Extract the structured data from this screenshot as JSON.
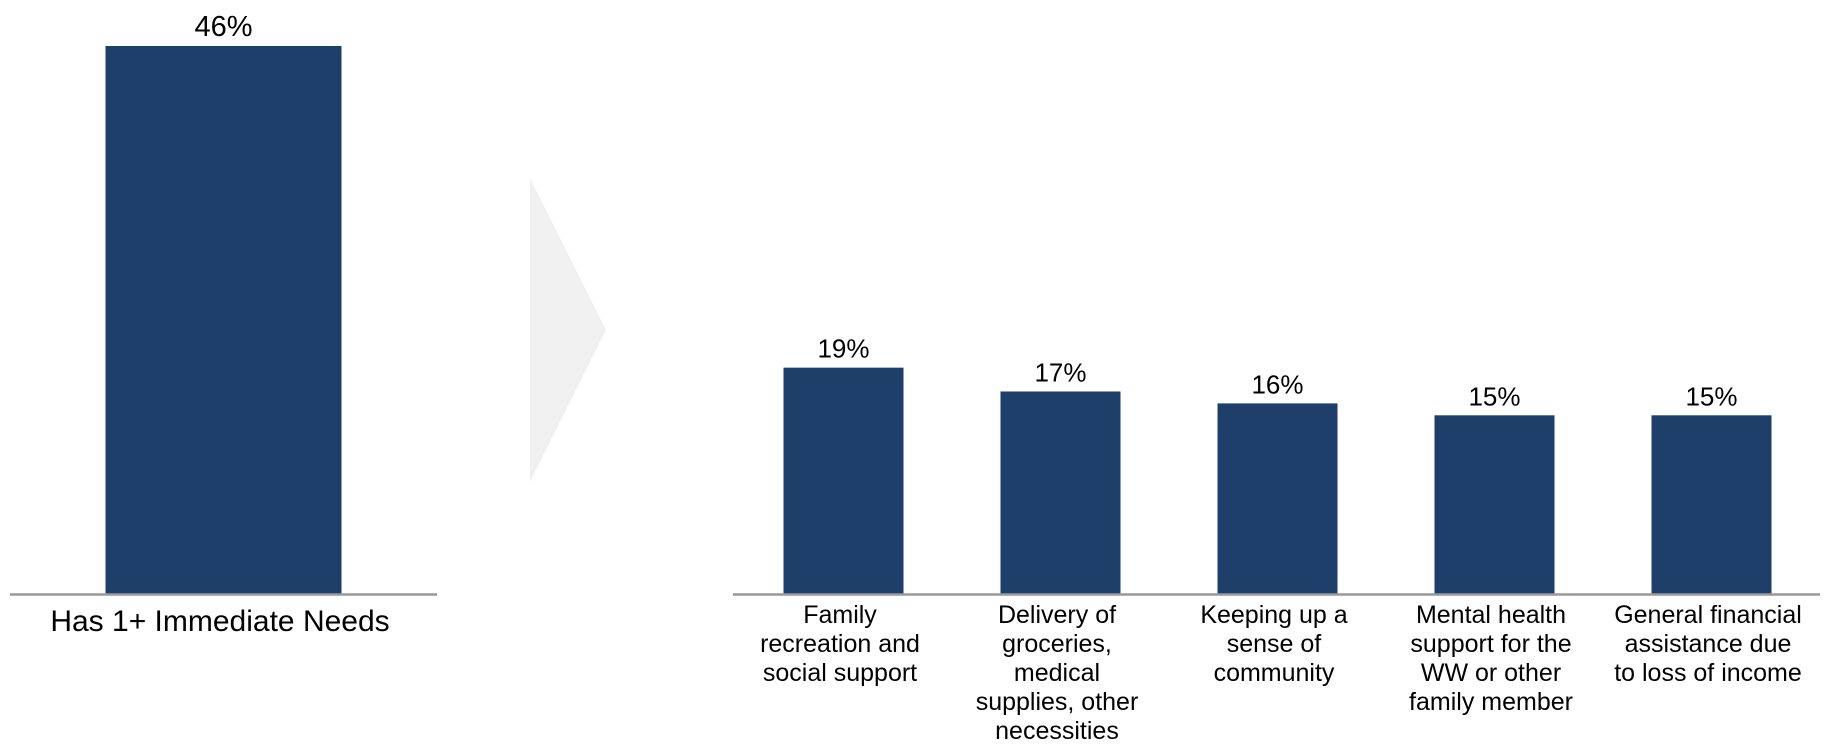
{
  "colors": {
    "bar": "#1e3f6a",
    "axis": "#999999",
    "arrow": "#f0f0f0",
    "text": "#000000"
  },
  "chart_data": [
    {
      "type": "bar",
      "categories": [
        "Has 1+ Immediate Needs"
      ],
      "values": [
        46
      ],
      "value_labels": [
        "46%"
      ],
      "ylim": [
        0,
        46
      ],
      "grid": false,
      "legend": "none"
    },
    {
      "type": "bar",
      "categories": [
        "Family recreation and social support",
        "Delivery of groceries, medical supplies, other necessities",
        "Keeping up a sense of community",
        "Mental health support for the WW or other family member",
        "General financial assistance due to loss of income"
      ],
      "values": [
        19,
        17,
        16,
        15,
        15
      ],
      "value_labels": [
        "19%",
        "17%",
        "16%",
        "15%",
        "15%"
      ],
      "ylim": [
        0,
        46
      ],
      "grid": false,
      "legend": "none"
    }
  ]
}
